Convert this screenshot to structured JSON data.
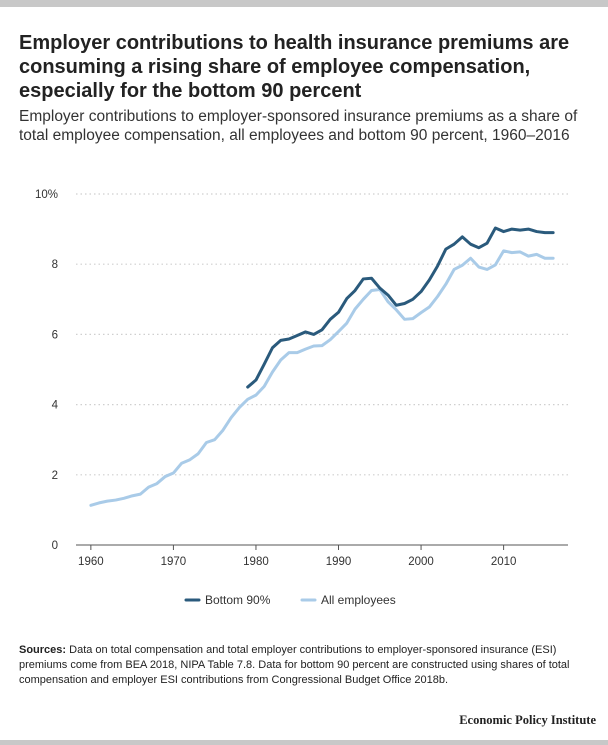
{
  "title": "Employer contributions to health insurance premiums are consuming a rising share of employee compensation, especially for the bottom 90 percent",
  "subtitle": "Employer contributions to employer-sponsored insurance premiums as a share of total employee compensation, all employees and bottom 90 percent, 1960–2016",
  "sources": {
    "label": "Sources:",
    "text": " Data on total compensation and total employer contributions to employer-sponsored insurance (ESI) premiums come from BEA 2018, NIPA Table 7.8. Data for bottom 90 percent are constructed using shares of total compensation and employer ESI contributions from Congressional Budget Office 2018b."
  },
  "brand": "Economic Policy Institute",
  "colors": {
    "bottom90": "#2a5a7c",
    "all": "#a9cbe8",
    "grid": "#cfcfcf",
    "axis": "#555555"
  },
  "chart_data": {
    "type": "line",
    "xlabel": "",
    "ylabel": "",
    "xlim": [
      1958.2,
      2017.8
    ],
    "ylim": [
      0,
      10
    ],
    "x_ticks": [
      1960,
      1970,
      1980,
      1990,
      2000,
      2010
    ],
    "y_ticks": [
      {
        "value": 0,
        "label": "0"
      },
      {
        "value": 2,
        "label": "2"
      },
      {
        "value": 4,
        "label": "4"
      },
      {
        "value": 6,
        "label": "6"
      },
      {
        "value": 8,
        "label": "8"
      },
      {
        "value": 10,
        "label": "10%"
      }
    ],
    "grid": true,
    "legend_position": "bottom",
    "series": [
      {
        "name": "Bottom 90%",
        "color": "#2a5a7c",
        "x": [
          1979,
          1980,
          1981,
          1982,
          1983,
          1984,
          1985,
          1986,
          1987,
          1988,
          1989,
          1990,
          1991,
          1992,
          1993,
          1994,
          1995,
          1996,
          1997,
          1998,
          1999,
          2000,
          2001,
          2002,
          2003,
          2004,
          2005,
          2006,
          2007,
          2008,
          2009,
          2010,
          2011,
          2012,
          2013,
          2014,
          2015,
          2016
        ],
        "values": [
          4.5,
          4.7,
          5.15,
          5.62,
          5.83,
          5.87,
          5.97,
          6.07,
          6.0,
          6.13,
          6.43,
          6.63,
          7.02,
          7.25,
          7.58,
          7.6,
          7.32,
          7.12,
          6.83,
          6.88,
          7.0,
          7.22,
          7.55,
          7.95,
          8.43,
          8.57,
          8.78,
          8.57,
          8.47,
          8.6,
          9.03,
          8.93,
          9.0,
          8.97,
          9.0,
          8.93,
          8.9,
          8.9
        ]
      },
      {
        "name": "All employees",
        "color": "#a9cbe8",
        "x": [
          1960,
          1961,
          1962,
          1963,
          1964,
          1965,
          1966,
          1967,
          1968,
          1969,
          1970,
          1971,
          1972,
          1973,
          1974,
          1975,
          1976,
          1977,
          1978,
          1979,
          1980,
          1981,
          1982,
          1983,
          1984,
          1985,
          1986,
          1987,
          1988,
          1989,
          1990,
          1991,
          1992,
          1993,
          1994,
          1995,
          1996,
          1997,
          1998,
          1999,
          2000,
          2001,
          2002,
          2003,
          2004,
          2005,
          2006,
          2007,
          2008,
          2009,
          2010,
          2011,
          2012,
          2013,
          2014,
          2015,
          2016
        ],
        "values": [
          1.13,
          1.2,
          1.25,
          1.28,
          1.33,
          1.4,
          1.45,
          1.65,
          1.75,
          1.95,
          2.05,
          2.33,
          2.43,
          2.6,
          2.92,
          3.0,
          3.27,
          3.63,
          3.92,
          4.15,
          4.27,
          4.52,
          4.93,
          5.27,
          5.48,
          5.48,
          5.58,
          5.67,
          5.68,
          5.85,
          6.08,
          6.32,
          6.72,
          7.0,
          7.25,
          7.28,
          6.93,
          6.7,
          6.43,
          6.45,
          6.62,
          6.78,
          7.08,
          7.43,
          7.85,
          7.97,
          8.17,
          7.92,
          7.85,
          7.98,
          8.38,
          8.33,
          8.35,
          8.23,
          8.28,
          8.17,
          8.17
        ]
      }
    ]
  }
}
